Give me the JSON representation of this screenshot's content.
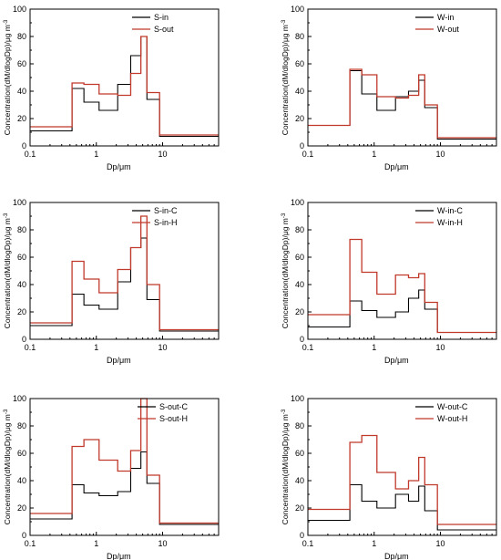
{
  "colors": {
    "black": "#000000",
    "red": "#c0392b"
  },
  "chart_data": [
    {
      "type": "line",
      "step": true,
      "xlabel": "Dp/μm",
      "ylabel": "Concentration(dM/dlogDp)/μg m",
      "ylabel_sup": "-3",
      "xscale": "log",
      "xlim": [
        0.1,
        70
      ],
      "ylim": [
        0,
        100
      ],
      "xticks": [
        "0.1",
        "1",
        "10"
      ],
      "yticks": [
        "0",
        "20",
        "40",
        "60",
        "80",
        "100"
      ],
      "legend_position": "top-left",
      "edges": [
        0.1,
        0.43,
        0.65,
        1.1,
        2.1,
        3.3,
        4.7,
        5.8,
        9.0,
        70
      ],
      "series": [
        {
          "name": "S-in",
          "color": "#000000",
          "values": [
            11,
            42,
            32,
            26,
            45,
            66,
            80,
            34,
            7
          ]
        },
        {
          "name": "S-out",
          "color": "#c0392b",
          "values": [
            14,
            46,
            45,
            38,
            37,
            53,
            80,
            39,
            8
          ]
        }
      ]
    },
    {
      "type": "line",
      "step": true,
      "xlabel": "Dp/μm",
      "ylabel": "Concentration(dM/dlogDp)/μg m",
      "ylabel_sup": "-3",
      "xscale": "log",
      "xlim": [
        0.1,
        70
      ],
      "ylim": [
        0,
        100
      ],
      "xticks": [
        "0.1",
        "1",
        "10"
      ],
      "yticks": [
        "0",
        "20",
        "40",
        "60",
        "80",
        "100"
      ],
      "legend_position": "top-right",
      "edges": [
        0.1,
        0.43,
        0.65,
        1.1,
        2.1,
        3.3,
        4.7,
        5.8,
        9.0,
        70
      ],
      "series": [
        {
          "name": "W-in",
          "color": "#000000",
          "values": [
            15,
            55,
            38,
            26,
            36,
            40,
            48,
            28,
            5
          ]
        },
        {
          "name": "W-out",
          "color": "#c0392b",
          "values": [
            15,
            56,
            52,
            36,
            35,
            37,
            52,
            30,
            6
          ]
        }
      ]
    },
    {
      "type": "line",
      "step": true,
      "xlabel": "Dp/μm",
      "ylabel": "Concentration(dM/dlogDp)/μg m",
      "ylabel_sup": "-3",
      "xscale": "log",
      "xlim": [
        0.1,
        70
      ],
      "ylim": [
        0,
        100
      ],
      "xticks": [
        "0.1",
        "1",
        "10"
      ],
      "yticks": [
        "0",
        "20",
        "40",
        "60",
        "80",
        "100"
      ],
      "legend_position": "top-left",
      "edges": [
        0.1,
        0.43,
        0.65,
        1.1,
        2.1,
        3.3,
        4.7,
        5.8,
        9.0,
        70
      ],
      "series": [
        {
          "name": "S-in-C",
          "color": "#000000",
          "values": [
            10,
            33,
            25,
            22,
            42,
            67,
            74,
            29,
            6
          ]
        },
        {
          "name": "S-in-H",
          "color": "#c0392b",
          "values": [
            12,
            57,
            44,
            34,
            51,
            67,
            90,
            40,
            7
          ]
        }
      ]
    },
    {
      "type": "line",
      "step": true,
      "xlabel": "Dp/μm",
      "ylabel": "Concentration(dM/dlogDp)/μg m",
      "ylabel_sup": "-3",
      "xscale": "log",
      "xlim": [
        0.1,
        70
      ],
      "ylim": [
        0,
        100
      ],
      "xticks": [
        "0.1",
        "1",
        "10"
      ],
      "yticks": [
        "0",
        "20",
        "40",
        "60",
        "80",
        "100"
      ],
      "legend_position": "top-right",
      "edges": [
        0.1,
        0.43,
        0.65,
        1.1,
        2.1,
        3.3,
        4.7,
        5.8,
        9.0,
        70
      ],
      "series": [
        {
          "name": "W-in-C",
          "color": "#000000",
          "values": [
            9,
            28,
            21,
            16,
            20,
            30,
            36,
            22,
            5
          ]
        },
        {
          "name": "W-in-H",
          "color": "#c0392b",
          "values": [
            18,
            73,
            49,
            33,
            47,
            45,
            48,
            27,
            5
          ]
        }
      ]
    },
    {
      "type": "line",
      "step": true,
      "xlabel": "Dp/μm",
      "ylabel": "Concentration(dM/dlogDp)/μg m",
      "ylabel_sup": "-3",
      "xscale": "log",
      "xlim": [
        0.1,
        70
      ],
      "ylim": [
        0,
        100
      ],
      "xticks": [
        "0.1",
        "1",
        "10"
      ],
      "yticks": [
        "0",
        "20",
        "40",
        "60",
        "80",
        "100"
      ],
      "legend_position": "top-right",
      "edges": [
        0.1,
        0.43,
        0.65,
        1.1,
        2.1,
        3.3,
        4.7,
        5.8,
        9.0,
        70
      ],
      "series": [
        {
          "name": "S-out-C",
          "color": "#000000",
          "values": [
            12,
            37,
            31,
            29,
            32,
            49,
            61,
            38,
            8
          ]
        },
        {
          "name": "S-out-H",
          "color": "#c0392b",
          "values": [
            16,
            65,
            70,
            55,
            47,
            62,
            100,
            44,
            9
          ]
        }
      ]
    },
    {
      "type": "line",
      "step": true,
      "xlabel": "Dp/μm",
      "ylabel": "Concentration(dM/dlogDp)/μg m",
      "ylabel_sup": "-3",
      "xscale": "log",
      "xlim": [
        0.1,
        70
      ],
      "ylim": [
        0,
        100
      ],
      "xticks": [
        "0.1",
        "1",
        "10"
      ],
      "yticks": [
        "0",
        "20",
        "40",
        "60",
        "80",
        "100"
      ],
      "legend_position": "top-right",
      "edges": [
        0.1,
        0.43,
        0.65,
        1.1,
        2.1,
        3.3,
        4.7,
        5.8,
        9.0,
        70
      ],
      "series": [
        {
          "name": "W-out-C",
          "color": "#000000",
          "values": [
            11,
            37,
            25,
            20,
            30,
            25,
            36,
            18,
            4
          ]
        },
        {
          "name": "W-out-H",
          "color": "#c0392b",
          "values": [
            19,
            68,
            73,
            46,
            34,
            40,
            57,
            37,
            8
          ]
        }
      ]
    }
  ]
}
